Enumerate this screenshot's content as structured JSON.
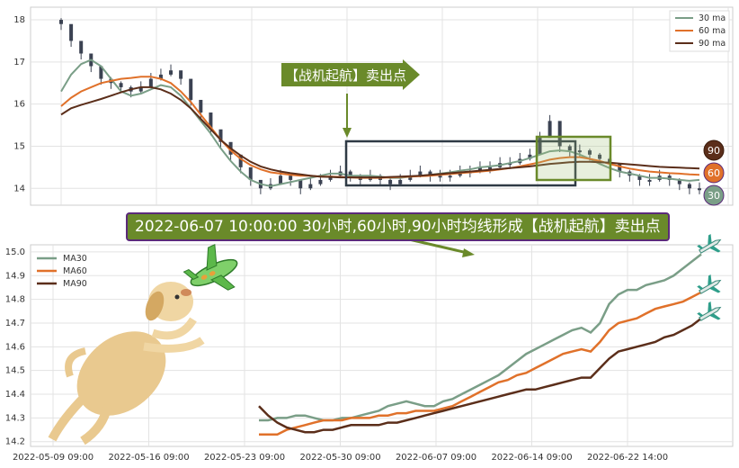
{
  "chart_data": [
    {
      "type": "candlestick",
      "title": "",
      "yticks": [
        14,
        15,
        16,
        17,
        18
      ],
      "ylim": [
        13.6,
        18.3
      ],
      "grid": true,
      "legend_placement": "top-right",
      "series": [
        {
          "name": "30 ma",
          "color": "#7a9e87"
        },
        {
          "name": "60 ma",
          "color": "#e0712a"
        },
        {
          "name": "90 ma",
          "color": "#5b2e1a"
        }
      ],
      "series_values": {
        "close": [
          17.9,
          17.5,
          17.2,
          16.9,
          16.6,
          16.5,
          16.4,
          16.3,
          16.4,
          16.6,
          16.7,
          16.8,
          16.6,
          16.1,
          15.8,
          15.4,
          15.1,
          14.8,
          14.5,
          14.2,
          14.0,
          14.1,
          14.3,
          14.2,
          14.0,
          14.1,
          14.2,
          14.3,
          14.4,
          14.3,
          14.2,
          14.3,
          14.2,
          14.1,
          14.2,
          14.3,
          14.4,
          14.3,
          14.3,
          14.3,
          14.4,
          14.4,
          14.5,
          14.5,
          14.6,
          14.6,
          14.7,
          14.8,
          15.2,
          15.6,
          15.0,
          14.9,
          14.9,
          14.8,
          14.7,
          14.6,
          14.4,
          14.3,
          14.2,
          14.2,
          14.3,
          14.2,
          14.1,
          14.0,
          14.0
        ],
        "ma30": [
          16.3,
          16.7,
          16.95,
          17.05,
          16.9,
          16.6,
          16.3,
          16.2,
          16.25,
          16.35,
          16.45,
          16.4,
          16.2,
          15.9,
          15.6,
          15.3,
          14.95,
          14.65,
          14.4,
          14.2,
          14.1,
          14.05,
          14.1,
          14.15,
          14.2,
          14.25,
          14.3,
          14.35,
          14.35,
          14.3,
          14.3,
          14.3,
          14.28,
          14.25,
          14.25,
          14.28,
          14.3,
          14.32,
          14.35,
          14.38,
          14.42,
          14.45,
          14.5,
          14.52,
          14.55,
          14.6,
          14.65,
          14.72,
          14.8,
          14.88,
          14.9,
          14.88,
          14.8,
          14.7,
          14.58,
          14.48,
          14.4,
          14.35,
          14.3,
          14.25,
          14.25,
          14.23,
          14.2,
          14.18,
          14.2
        ],
        "ma60": [
          15.95,
          16.15,
          16.3,
          16.4,
          16.5,
          16.55,
          16.6,
          16.62,
          16.65,
          16.65,
          16.6,
          16.5,
          16.3,
          16.05,
          15.75,
          15.45,
          15.15,
          14.9,
          14.7,
          14.55,
          14.45,
          14.38,
          14.35,
          14.32,
          14.3,
          14.3,
          14.28,
          14.28,
          14.27,
          14.26,
          14.25,
          14.25,
          14.25,
          14.26,
          14.27,
          14.28,
          14.29,
          14.3,
          14.32,
          14.34,
          14.36,
          14.38,
          14.4,
          14.42,
          14.45,
          14.48,
          14.52,
          14.57,
          14.62,
          14.68,
          14.72,
          14.74,
          14.74,
          14.7,
          14.65,
          14.58,
          14.52,
          14.47,
          14.43,
          14.4,
          14.38,
          14.36,
          14.35,
          14.33,
          14.32
        ],
        "ma90": [
          15.75,
          15.9,
          15.98,
          16.05,
          16.12,
          16.2,
          16.28,
          16.35,
          16.4,
          16.4,
          16.35,
          16.25,
          16.1,
          15.9,
          15.65,
          15.4,
          15.15,
          14.95,
          14.78,
          14.63,
          14.52,
          14.45,
          14.4,
          14.36,
          14.33,
          14.3,
          14.28,
          14.27,
          14.26,
          14.26,
          14.26,
          14.26,
          14.26,
          14.27,
          14.28,
          14.29,
          14.3,
          14.32,
          14.34,
          14.36,
          14.38,
          14.4,
          14.42,
          14.44,
          14.46,
          14.48,
          14.5,
          14.52,
          14.55,
          14.58,
          14.6,
          14.62,
          14.63,
          14.63,
          14.62,
          14.61,
          14.59,
          14.57,
          14.55,
          14.53,
          14.51,
          14.5,
          14.49,
          14.48,
          14.47
        ]
      },
      "end_badges": [
        "90",
        "60",
        "30"
      ],
      "annotation": "【战机起航】卖出点"
    },
    {
      "type": "line",
      "title": "",
      "x_ticks": [
        "2022-05-09 09:00",
        "2022-05-16 09:00",
        "2022-05-23 09:00",
        "2022-05-30 09:00",
        "2022-06-07 09:00",
        "2022-06-14 09:00",
        "2022-06-22 14:00"
      ],
      "yticks": [
        14.2,
        14.3,
        14.4,
        14.5,
        14.6,
        14.7,
        14.8,
        14.9,
        15.0
      ],
      "ylim": [
        14.18,
        15.03
      ],
      "grid": true,
      "legend_placement": "top-left",
      "series": [
        {
          "name": "MA30",
          "color": "#7a9e87",
          "values": [
            14.29,
            14.29,
            14.3,
            14.3,
            14.31,
            14.31,
            14.3,
            14.29,
            14.29,
            14.3,
            14.3,
            14.31,
            14.32,
            14.33,
            14.35,
            14.36,
            14.37,
            14.36,
            14.35,
            14.35,
            14.37,
            14.38,
            14.4,
            14.42,
            14.44,
            14.46,
            14.48,
            14.51,
            14.54,
            14.57,
            14.59,
            14.61,
            14.63,
            14.65,
            14.67,
            14.68,
            14.66,
            14.7,
            14.78,
            14.82,
            14.84,
            14.84,
            14.86,
            14.87,
            14.88,
            14.9,
            14.93,
            14.96,
            14.99
          ]
        },
        {
          "name": "MA60",
          "color": "#e0712a",
          "values": [
            14.23,
            14.23,
            14.23,
            14.25,
            14.26,
            14.27,
            14.28,
            14.29,
            14.29,
            14.29,
            14.3,
            14.3,
            14.3,
            14.31,
            14.31,
            14.32,
            14.32,
            14.33,
            14.33,
            14.33,
            14.34,
            14.35,
            14.37,
            14.39,
            14.41,
            14.43,
            14.45,
            14.46,
            14.48,
            14.49,
            14.51,
            14.53,
            14.55,
            14.57,
            14.58,
            14.59,
            14.58,
            14.62,
            14.67,
            14.7,
            14.71,
            14.72,
            14.74,
            14.76,
            14.77,
            14.78,
            14.79,
            14.81,
            14.83
          ]
        },
        {
          "name": "MA90",
          "color": "#5b2e1a",
          "values": [
            14.35,
            14.31,
            14.28,
            14.26,
            14.25,
            14.24,
            14.24,
            14.25,
            14.25,
            14.26,
            14.27,
            14.27,
            14.27,
            14.27,
            14.28,
            14.28,
            14.29,
            14.3,
            14.31,
            14.32,
            14.33,
            14.34,
            14.35,
            14.36,
            14.37,
            14.38,
            14.39,
            14.4,
            14.41,
            14.42,
            14.42,
            14.43,
            14.44,
            14.45,
            14.46,
            14.47,
            14.47,
            14.51,
            14.55,
            14.58,
            14.59,
            14.6,
            14.61,
            14.62,
            14.64,
            14.65,
            14.67,
            14.69,
            14.72
          ]
        }
      ],
      "annotation": "2022-06-07 10:00:00 30小时,60小时,90小时均线形成【战机起航】卖出点"
    }
  ]
}
